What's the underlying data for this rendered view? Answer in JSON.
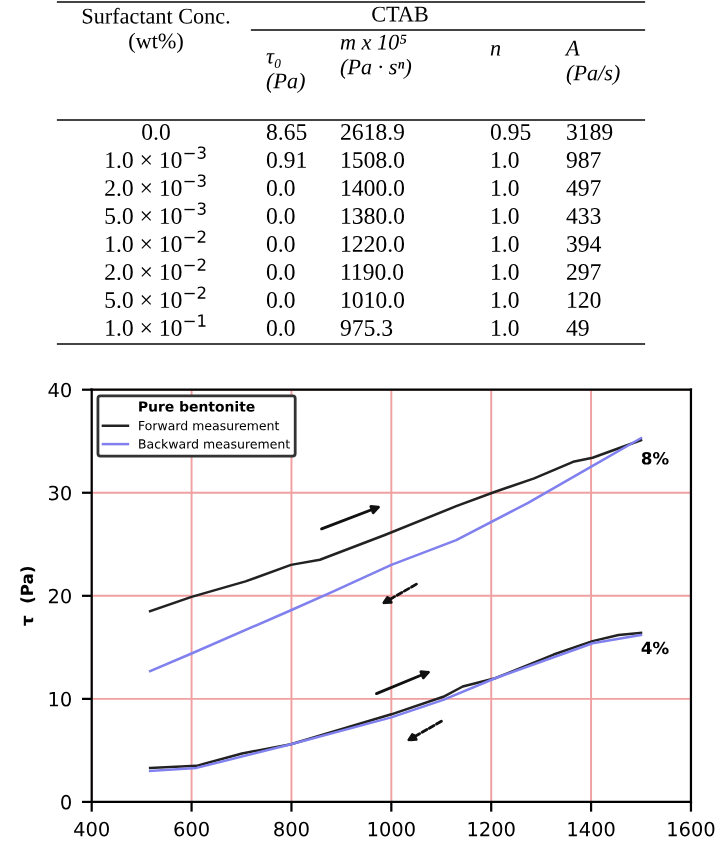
{
  "chart_data": [
    {
      "type": "other",
      "annotations": [
        "Surfactant Conc.\n(wt%)",
        "CTAB",
        "τ₀\n(Pa)",
        "m x 10⁵\n(Pa · sⁿ)",
        "n",
        "A\n(Pa/s)",
        "0.0",
        "8.65",
        "2618.9",
        "0.95",
        "3189",
        "1.0 × 10$^{−3}$",
        "0.91",
        "1508.0",
        "1.0",
        "987",
        "2.0 × 10$^{−3}$",
        "0.0",
        "1400.0",
        "1.0",
        "497",
        "5.0 × 10$^{−3}$",
        "0.0",
        "1380.0",
        "1.0",
        "433",
        "1.0 × 10$^{−2}$",
        "0.0",
        "1220.0",
        "1.0",
        "394",
        "2.0 × 10$^{−2}$",
        "0.0",
        "1190.0",
        "1.0",
        "297",
        "5.0 × 10$^{−2}$",
        "0.0",
        "1010.0",
        "1.0",
        "120",
        "1.0 × 10$^{−1}$",
        "0.0",
        "975.3",
        "1.0",
        "49"
      ]
    },
    {
      "type": "line",
      "ylabel": "τ  (Pa)",
      "legend_title": "Pure bentonite",
      "legend": "top left",
      "grid": true,
      "xlim": [
        400,
        1600
      ],
      "xticks": [
        400,
        600,
        800,
        1000,
        1200,
        1400,
        1600
      ],
      "ylim": [
        0,
        40
      ],
      "yticks": [
        0,
        10,
        20,
        30,
        40
      ],
      "series": [
        {
          "name": "Forward measurement",
          "color": "#222222",
          "x": [
            517,
            600,
            708,
            799,
            857,
            987,
            1130,
            1208,
            1286,
            1364,
            1403,
            1500
          ],
          "values": [
            18.5,
            19.9,
            21.4,
            23.0,
            23.5,
            25.9,
            28.7,
            30.1,
            31.4,
            33.0,
            33.4,
            35.1
          ]
        },
        {
          "name": "Backward measurement",
          "color": "#8080ee",
          "x": [
            517,
            600,
            799,
            883,
            1000,
            1130,
            1273,
            1403,
            1500
          ],
          "values": [
            12.7,
            14.4,
            18.6,
            20.4,
            23.0,
            25.4,
            29.0,
            32.6,
            35.3
          ]
        },
        {
          "color": "#222222",
          "x": [
            517,
            610,
            701,
            799,
            1000,
            1104,
            1143,
            1208,
            1325,
            1403,
            1455,
            1500
          ],
          "values": [
            3.3,
            3.5,
            4.7,
            5.6,
            8.5,
            10.2,
            11.2,
            12.0,
            14.3,
            15.6,
            16.2,
            16.4
          ]
        },
        {
          "color": "#8080ee",
          "x": [
            517,
            610,
            799,
            1000,
            1104,
            1208,
            1403,
            1500
          ],
          "values": [
            3.0,
            3.3,
            5.6,
            8.2,
            9.9,
            12.0,
            15.4,
            16.2
          ]
        }
      ],
      "annotations": [
        "8%",
        "4%"
      ]
    }
  ]
}
